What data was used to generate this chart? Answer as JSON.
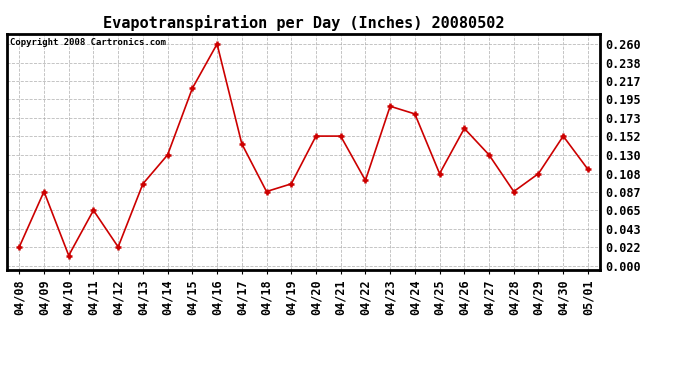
{
  "title": "Evapotranspiration per Day (Inches) 20080502",
  "copyright": "Copyright 2008 Cartronics.com",
  "dates": [
    "04/08",
    "04/09",
    "04/10",
    "04/11",
    "04/12",
    "04/13",
    "04/14",
    "04/15",
    "04/16",
    "04/17",
    "04/18",
    "04/19",
    "04/20",
    "04/21",
    "04/22",
    "04/23",
    "04/24",
    "04/25",
    "04/26",
    "04/27",
    "04/28",
    "04/29",
    "04/30",
    "05/01"
  ],
  "values": [
    0.022,
    0.087,
    0.012,
    0.065,
    0.022,
    0.096,
    0.13,
    0.208,
    0.26,
    0.143,
    0.087,
    0.096,
    0.152,
    0.152,
    0.1,
    0.187,
    0.178,
    0.108,
    0.161,
    0.13,
    0.087,
    0.108,
    0.152,
    0.113
  ],
  "line_color": "#cc0000",
  "marker_color": "#cc0000",
  "bg_color": "#ffffff",
  "grid_color": "#aaaaaa",
  "yticks": [
    0.0,
    0.022,
    0.043,
    0.065,
    0.087,
    0.108,
    0.13,
    0.152,
    0.173,
    0.195,
    0.217,
    0.238,
    0.26
  ],
  "ylim": [
    -0.005,
    0.272
  ],
  "title_fontsize": 11,
  "copyright_fontsize": 6.5,
  "tick_fontsize": 8.5
}
